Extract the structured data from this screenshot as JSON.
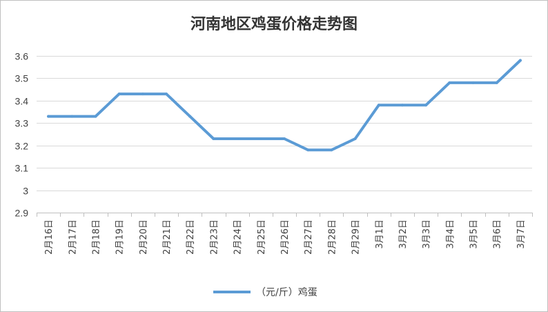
{
  "chart_data": {
    "type": "line",
    "title": "河南地区鸡蛋价格走势图",
    "xlabel": "",
    "ylabel": "",
    "ylim": [
      2.9,
      3.6
    ],
    "yticks": [
      2.9,
      3,
      3.1,
      3.2,
      3.3,
      3.4,
      3.5,
      3.6
    ],
    "grid": true,
    "legend": "bottom",
    "categories": [
      "2月16日",
      "2月17日",
      "2月18日",
      "2月19日",
      "2月20日",
      "2月21日",
      "2月22日",
      "2月23日",
      "2月24日",
      "2月25日",
      "2月26日",
      "2月27日",
      "2月28日",
      "2月29日",
      "3月1日",
      "3月2日",
      "3月3日",
      "3月4日",
      "3月5日",
      "3月6日",
      "3月7日"
    ],
    "series": [
      {
        "name": "（元/斤）鸡蛋",
        "color": "#5b9bd5",
        "values": [
          3.33,
          3.33,
          3.33,
          3.43,
          3.43,
          3.43,
          3.33,
          3.23,
          3.23,
          3.23,
          3.23,
          3.18,
          3.18,
          3.23,
          3.38,
          3.38,
          3.38,
          3.48,
          3.48,
          3.48,
          3.58
        ]
      }
    ]
  }
}
